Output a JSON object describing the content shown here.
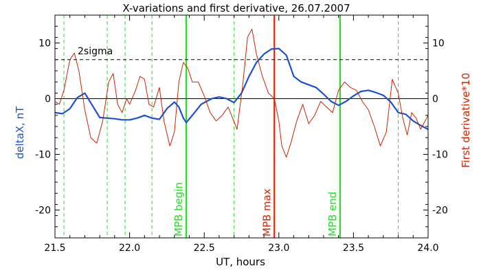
{
  "chart_data": {
    "type": "line",
    "title": "X-variations and first derivative, 26.07.2007",
    "xlabel": "UT, hours",
    "ylabel_left": "deltaX, nT",
    "ylabel_right": "First derivative*10",
    "xlim": [
      21.5,
      24.0
    ],
    "ylim": [
      -25,
      15
    ],
    "x_ticks": [
      21.5,
      22.0,
      22.5,
      23.0,
      23.5,
      24.0
    ],
    "x_tick_labels": [
      "21.5",
      "22.0",
      "22.5",
      "23.0",
      "23.5",
      "24.0"
    ],
    "y_ticks": [
      -20,
      -10,
      0,
      10
    ],
    "y_tick_labels": [
      "-20",
      "-10",
      "0",
      "10"
    ],
    "y2_tick_labels": [
      "-20",
      "-10",
      "0",
      "10"
    ],
    "grid": false,
    "colors": {
      "deltaX": "#1a4fd6",
      "derivative": "#cc2200",
      "mpb": "#22dd22",
      "mpb_max": "#dd2200",
      "axes": "#000000",
      "zero_line": "#000000",
      "sigma_line": "#000000"
    },
    "sigma_line": {
      "label": "2sigma",
      "y": 7.0
    },
    "zero_line": {
      "y": 0
    },
    "dashed_green_lines": [
      21.56,
      21.85,
      21.97,
      22.15,
      22.7,
      23.8
    ],
    "markers": [
      {
        "label": "MPB begin",
        "x": 22.38,
        "kind": "mpb"
      },
      {
        "label": "MPB max",
        "x": 22.97,
        "kind": "mpb_max"
      },
      {
        "label": "MPB end",
        "x": 23.41,
        "kind": "mpb"
      }
    ],
    "series": [
      {
        "name": "deltaX",
        "color": "#1a4fd6",
        "x": [
          21.5,
          21.55,
          21.6,
          21.65,
          21.7,
          21.75,
          21.8,
          21.85,
          21.9,
          21.95,
          22.0,
          22.05,
          22.1,
          22.15,
          22.2,
          22.25,
          22.3,
          22.33,
          22.36,
          22.38,
          22.42,
          22.48,
          22.55,
          22.6,
          22.65,
          22.7,
          22.75,
          22.8,
          22.85,
          22.9,
          22.95,
          23.0,
          23.05,
          23.1,
          23.15,
          23.2,
          23.25,
          23.3,
          23.35,
          23.4,
          23.45,
          23.5,
          23.55,
          23.6,
          23.65,
          23.7,
          23.75,
          23.8,
          23.85,
          23.9,
          23.95,
          24.0
        ],
        "y": [
          -2.5,
          -2.7,
          -1.8,
          0.2,
          1.0,
          -1.2,
          -3.4,
          -3.5,
          -3.6,
          -3.8,
          -3.8,
          -3.5,
          -3.0,
          -3.5,
          -3.7,
          -1.8,
          -0.6,
          -1.5,
          -3.5,
          -4.3,
          -3.0,
          -1.0,
          0.0,
          0.3,
          0.0,
          -0.7,
          1.0,
          4.0,
          6.5,
          8.0,
          8.9,
          9.0,
          7.8,
          4.0,
          3.0,
          2.5,
          2.0,
          0.8,
          -0.5,
          -1.2,
          -0.5,
          0.5,
          1.3,
          1.5,
          1.1,
          0.6,
          -0.6,
          -2.5,
          -2.8,
          -4.0,
          -4.8,
          -5.5
        ]
      },
      {
        "name": "First derivative*10",
        "color": "#cc2200",
        "x": [
          21.5,
          21.53,
          21.56,
          21.6,
          21.63,
          21.66,
          21.7,
          21.74,
          21.78,
          21.82,
          21.86,
          21.89,
          21.92,
          21.95,
          21.98,
          22.0,
          22.04,
          22.07,
          22.1,
          22.13,
          22.16,
          22.2,
          22.23,
          22.27,
          22.3,
          22.33,
          22.36,
          22.39,
          22.42,
          22.46,
          22.5,
          22.54,
          22.58,
          22.62,
          22.66,
          22.69,
          22.72,
          22.76,
          22.79,
          22.82,
          22.85,
          22.89,
          22.93,
          22.97,
          23.0,
          23.02,
          23.05,
          23.08,
          23.12,
          23.16,
          23.2,
          23.24,
          23.28,
          23.32,
          23.36,
          23.4,
          23.44,
          23.48,
          23.52,
          23.56,
          23.6,
          23.64,
          23.68,
          23.72,
          23.76,
          23.8,
          23.83,
          23.86,
          23.89,
          23.92,
          23.95,
          23.98,
          24.0
        ],
        "y": [
          -0.5,
          -1.0,
          1.5,
          7.0,
          8.2,
          5.0,
          -2.0,
          -7.0,
          -8.0,
          -4.0,
          3.0,
          4.5,
          -1.0,
          -2.5,
          0.0,
          -1.0,
          1.5,
          4.0,
          3.5,
          -1.0,
          -1.5,
          2.0,
          -4.0,
          -8.5,
          -6.0,
          3.0,
          6.5,
          5.5,
          3.0,
          3.0,
          0.5,
          -2.5,
          -4.0,
          -3.0,
          -1.5,
          -3.5,
          -5.5,
          3.0,
          11.0,
          12.5,
          8.0,
          4.0,
          1.0,
          0.0,
          -4.0,
          -8.5,
          -10.5,
          -8.0,
          -4.0,
          -1.0,
          -4.5,
          -3.0,
          -0.5,
          -1.5,
          -2.5,
          1.5,
          3.0,
          2.0,
          1.5,
          -0.5,
          -2.0,
          -5.0,
          -8.5,
          -6.0,
          3.5,
          1.0,
          -3.5,
          -6.5,
          -2.5,
          -3.5,
          -5.5,
          -4.0,
          -3.0
        ]
      }
    ]
  }
}
